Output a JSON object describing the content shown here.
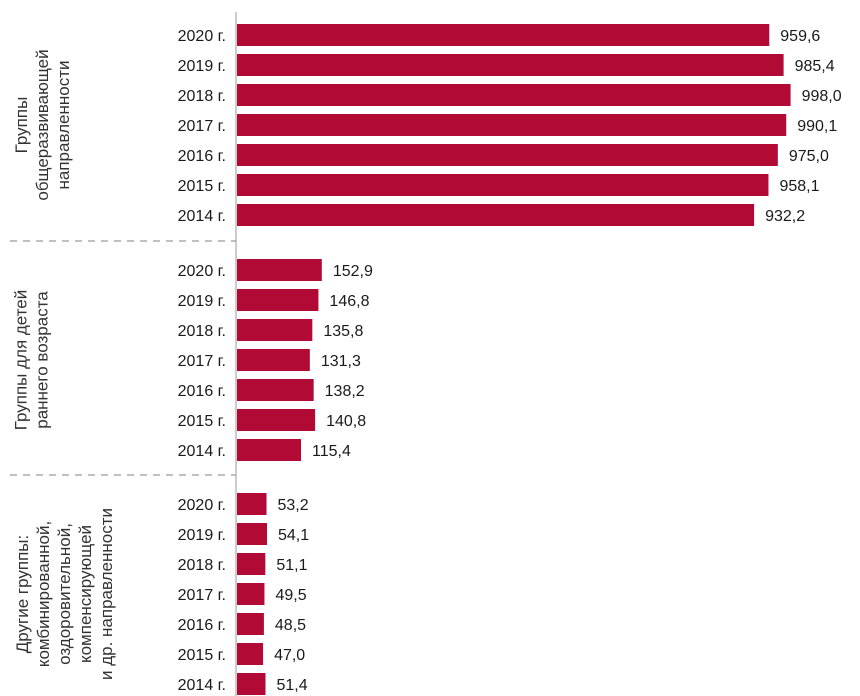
{
  "chart_data": {
    "type": "bar",
    "orientation": "horizontal",
    "grid": false,
    "bar_color": "#b10b35",
    "groups": [
      {
        "label_lines": [
          "Группы",
          "общеразвивающей",
          "направленности"
        ],
        "categories": [
          "2020 г.",
          "2019 г.",
          "2018 г.",
          "2017 г.",
          "2016 г.",
          "2015 г.",
          "2014 г."
        ],
        "values": [
          959.6,
          985.4,
          998.0,
          990.1,
          975.0,
          958.1,
          932.2
        ],
        "value_labels": [
          "959,6",
          "985,4",
          "998,0",
          "990,1",
          "975,0",
          "958,1",
          "932,2"
        ]
      },
      {
        "label_lines": [
          "Группы для детей",
          "раннего возраста"
        ],
        "categories": [
          "2020 г.",
          "2019 г.",
          "2018 г.",
          "2017 г.",
          "2016 г.",
          "2015 г.",
          "2014 г."
        ],
        "values": [
          152.9,
          146.8,
          135.8,
          131.3,
          138.2,
          140.8,
          115.4
        ],
        "value_labels": [
          "152,9",
          "146,8",
          "135,8",
          "131,3",
          "138,2",
          "140,8",
          "115,4"
        ]
      },
      {
        "label_lines": [
          "Другие группы:",
          "комбинированной,",
          "оздоровительной,",
          "компенсирующей",
          "и др. направленности"
        ],
        "categories": [
          "2020 г.",
          "2019 г.",
          "2018 г.",
          "2017 г.",
          "2016 г.",
          "2015 г.",
          "2014 г."
        ],
        "values": [
          53.2,
          54.1,
          51.1,
          49.5,
          48.5,
          47.0,
          51.4
        ],
        "value_labels": [
          "53,2",
          "54,1",
          "51,1",
          "49,5",
          "48,5",
          "47,0",
          "51,4"
        ]
      }
    ]
  }
}
